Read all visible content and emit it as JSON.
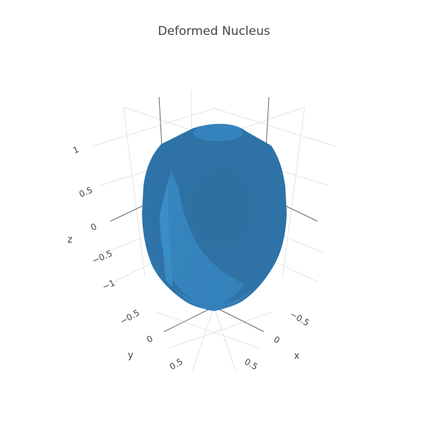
{
  "chart_data": {
    "type": "surface",
    "title": "Deformed Nucleus",
    "axes": {
      "x": {
        "label": "x",
        "ticks": [
          "−0.5",
          "0",
          "0.5"
        ]
      },
      "y": {
        "label": "y",
        "ticks": [
          "−0.5",
          "0",
          "0.5"
        ]
      },
      "z": {
        "label": "z",
        "ticks": [
          "1",
          "0.5",
          "0",
          "−0.5",
          "−1"
        ],
        "range": [
          -1,
          1
        ]
      }
    },
    "grid": true,
    "legend": "none",
    "colors": {
      "surface": "#2f7ab2",
      "surface_dark": "#2c6e9f",
      "surface_light": "#3b8cc4",
      "highlight": "#3a8ac2",
      "grid": "#e4e4e4",
      "axis_line": "#555555",
      "text": "#444444"
    }
  }
}
